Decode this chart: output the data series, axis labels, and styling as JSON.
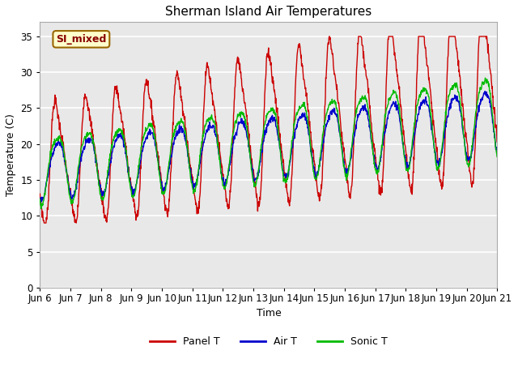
{
  "title": "Sherman Island Air Temperatures",
  "xlabel": "Time",
  "ylabel": "Temperature (C)",
  "annotation": "SI_mixed",
  "ylim": [
    0,
    37
  ],
  "yticks": [
    0,
    5,
    10,
    15,
    20,
    25,
    30,
    35
  ],
  "date_labels": [
    "Jun 6",
    "Jun 7",
    "Jun 8",
    "Jun 9",
    "Jun 10",
    "Jun 11",
    "Jun 12",
    "Jun 13",
    "Jun 14",
    "Jun 15",
    "Jun 16",
    "Jun 17",
    "Jun 18",
    "Jun 19",
    "Jun 20",
    "Jun 21"
  ],
  "colors": {
    "panel_t": "#cc0000",
    "air_t": "#0000cc",
    "sonic_t": "#00bb00"
  },
  "legend_labels": [
    "Panel T",
    "Air T",
    "Sonic T"
  ],
  "plot_bg": "#e8e8e8",
  "fig_bg": "#ffffff",
  "grid_color": "#ffffff",
  "annotation_bg": "#ffffcc",
  "annotation_border": "#996600",
  "annotation_text_color": "#880000"
}
